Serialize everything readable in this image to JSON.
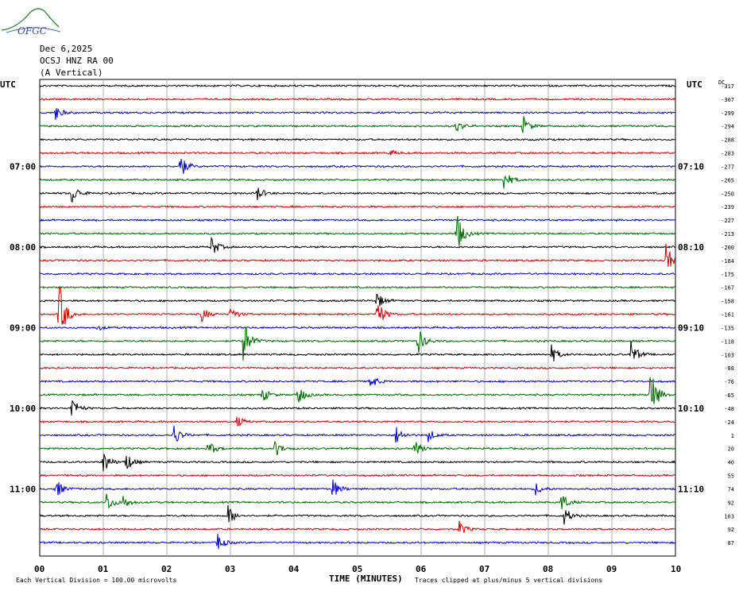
{
  "header": {
    "logo_text": "OFGC",
    "date": "Dec 6,2025",
    "station": "OCSJ HNZ RA 00",
    "component": "(A Vertical)"
  },
  "chart_data": {
    "type": "line",
    "title": "Dec 6,2025  OCSJ HNZ RA 00 (A Vertical)",
    "xlabel": "TIME (MINUTES)",
    "xlim": [
      0,
      10
    ],
    "x_ticks": [
      "00",
      "01",
      "02",
      "03",
      "04",
      "05",
      "06",
      "07",
      "08",
      "09",
      "10"
    ],
    "left_axis_title": "UTC",
    "right_axis_title": "UTC",
    "dc_title": "DC",
    "traces_per_row_label": 6,
    "left_time_labels": [
      {
        "row": 6,
        "label": "07:00"
      },
      {
        "row": 12,
        "label": "08:00"
      },
      {
        "row": 18,
        "label": "09:00"
      },
      {
        "row": 24,
        "label": "10:00"
      },
      {
        "row": 30,
        "label": "11:00"
      }
    ],
    "right_time_labels": [
      {
        "row": 6,
        "label": "07:10"
      },
      {
        "row": 12,
        "label": "08:10"
      },
      {
        "row": 18,
        "label": "09:10"
      },
      {
        "row": 24,
        "label": "10:10"
      },
      {
        "row": 30,
        "label": "11:10"
      }
    ],
    "dc_offsets": [
      "-317",
      "-307",
      "-299",
      "-294",
      "-288",
      "-283",
      "-277",
      "-265",
      "-250",
      "-239",
      "-227",
      "-213",
      "-200",
      "-184",
      "-175",
      "-167",
      "-158",
      "-161",
      "-135",
      "-118",
      "-103",
      "-88",
      "-76",
      "-65",
      "-48",
      "-24",
      "1",
      "20",
      "40",
      "55",
      "74",
      "92",
      "103",
      "92",
      "87"
    ],
    "trace_colors": [
      "#000000",
      "#cc0000",
      "#0000cc",
      "#006600"
    ],
    "events": [
      {
        "row": 2,
        "minute": 0.25,
        "amp": 10
      },
      {
        "row": 3,
        "minute": 6.55,
        "amp": 8
      },
      {
        "row": 3,
        "minute": 7.6,
        "amp": 14
      },
      {
        "row": 5,
        "minute": 5.5,
        "amp": 4
      },
      {
        "row": 6,
        "minute": 2.2,
        "amp": 18
      },
      {
        "row": 7,
        "minute": 7.3,
        "amp": 14
      },
      {
        "row": 8,
        "minute": 0.5,
        "amp": 14
      },
      {
        "row": 8,
        "minute": 3.4,
        "amp": 12
      },
      {
        "row": 11,
        "minute": 6.55,
        "amp": 30
      },
      {
        "row": 12,
        "minute": 2.7,
        "amp": 14
      },
      {
        "row": 13,
        "minute": 9.85,
        "amp": 24
      },
      {
        "row": 16,
        "minute": 5.3,
        "amp": 12
      },
      {
        "row": 17,
        "minute": 0.3,
        "amp": 44
      },
      {
        "row": 17,
        "minute": 2.55,
        "amp": 10
      },
      {
        "row": 17,
        "minute": 3.0,
        "amp": 10
      },
      {
        "row": 17,
        "minute": 5.3,
        "amp": 22
      },
      {
        "row": 18,
        "minute": 0.9,
        "amp": 4
      },
      {
        "row": 19,
        "minute": 3.2,
        "amp": 30
      },
      {
        "row": 19,
        "minute": 5.95,
        "amp": 18
      },
      {
        "row": 20,
        "minute": 8.05,
        "amp": 12
      },
      {
        "row": 20,
        "minute": 9.3,
        "amp": 18
      },
      {
        "row": 22,
        "minute": 5.2,
        "amp": 10
      },
      {
        "row": 23,
        "minute": 3.5,
        "amp": 10
      },
      {
        "row": 23,
        "minute": 4.05,
        "amp": 16
      },
      {
        "row": 23,
        "minute": 9.6,
        "amp": 40
      },
      {
        "row": 24,
        "minute": 0.5,
        "amp": 16
      },
      {
        "row": 25,
        "minute": 3.1,
        "amp": 8
      },
      {
        "row": 26,
        "minute": 2.1,
        "amp": 16
      },
      {
        "row": 26,
        "minute": 5.6,
        "amp": 12
      },
      {
        "row": 26,
        "minute": 6.1,
        "amp": 10
      },
      {
        "row": 27,
        "minute": 2.65,
        "amp": 12
      },
      {
        "row": 27,
        "minute": 3.7,
        "amp": 12
      },
      {
        "row": 27,
        "minute": 5.9,
        "amp": 12
      },
      {
        "row": 28,
        "minute": 1.0,
        "amp": 16
      },
      {
        "row": 28,
        "minute": 1.35,
        "amp": 14
      },
      {
        "row": 30,
        "minute": 0.25,
        "amp": 14
      },
      {
        "row": 30,
        "minute": 4.6,
        "amp": 14
      },
      {
        "row": 30,
        "minute": 7.8,
        "amp": 8
      },
      {
        "row": 31,
        "minute": 1.05,
        "amp": 14
      },
      {
        "row": 31,
        "minute": 1.3,
        "amp": 10
      },
      {
        "row": 31,
        "minute": 8.2,
        "amp": 14
      },
      {
        "row": 32,
        "minute": 2.95,
        "amp": 16
      },
      {
        "row": 32,
        "minute": 8.25,
        "amp": 12
      },
      {
        "row": 33,
        "minute": 6.6,
        "amp": 10
      },
      {
        "row": 34,
        "minute": 2.8,
        "amp": 12
      }
    ],
    "footer_left": "Each Vertical Division =  100.00 microvolts",
    "footer_right": "Traces clipped at plus/minus 5 vertical divisions"
  }
}
